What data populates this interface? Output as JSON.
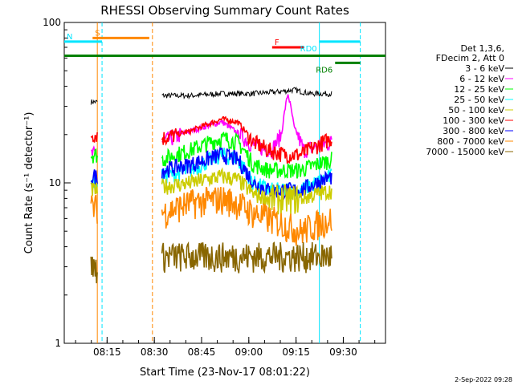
{
  "chart_data": {
    "type": "line",
    "title": "RHESSI Observing Summary Count Rates",
    "xlabel": "Start Time (23-Nov-17 08:01:22)",
    "ylabel": "Count Rate (s⁻¹ detector⁻¹)",
    "yscale": "log",
    "ylim": [
      1,
      100
    ],
    "xlim_minutes": [
      0,
      102
    ],
    "x_ticks": [
      {
        "label": "08:15",
        "minute": 13.6
      },
      {
        "label": "08:30",
        "minute": 28.6
      },
      {
        "label": "08:45",
        "minute": 43.6
      },
      {
        "label": "09:00",
        "minute": 58.6
      },
      {
        "label": "09:15",
        "minute": 73.6
      },
      {
        "label": "09:30",
        "minute": 88.6
      }
    ],
    "y_ticks": [
      {
        "label": "1",
        "value": 1
      },
      {
        "label": "10",
        "value": 10
      },
      {
        "label": "100",
        "value": 100
      }
    ],
    "legend": {
      "header": [
        "Det 1,3,6,",
        "FDecim 2, Att 0"
      ],
      "entries": [
        {
          "label": "3 - 6 keV",
          "color": "#000000"
        },
        {
          "label": "6 - 12 keV",
          "color": "#ff00ff"
        },
        {
          "label": "12 - 25 keV",
          "color": "#00ff00"
        },
        {
          "label": "25 - 50 keV",
          "color": "#00ffff"
        },
        {
          "label": "50 - 100 keV",
          "color": "#cccc00"
        },
        {
          "label": "100 - 300 keV",
          "color": "#ff0000"
        },
        {
          "label": "300 - 800 keV",
          "color": "#0000ff"
        },
        {
          "label": "800 - 7000 keV",
          "color": "#ff8800"
        },
        {
          "label": "7000 - 15000 keV",
          "color": "#886600"
        }
      ]
    },
    "flags": [
      {
        "label": "S",
        "color": "#ff8800",
        "value": 80,
        "x_start": 9.0,
        "x_end": 27.0
      },
      {
        "label": "N",
        "color": "#00e5ff",
        "value": 76,
        "x_start": 0,
        "x_end": 12.0
      },
      {
        "label": "F",
        "color": "#ff0000",
        "value": 70,
        "x_start": 66.0,
        "x_end": 76.0
      },
      {
        "label": "RD0",
        "color": "#00e5ff",
        "value": 76,
        "x_start": 81.0,
        "x_end": 94.0
      },
      {
        "label": "RD6",
        "color": "#008000",
        "value": 56,
        "x_start": 86.0,
        "x_end": 94.0
      },
      {
        "label": "",
        "color": "#008000",
        "value": 62,
        "x_start": 0,
        "x_end": 102.0
      }
    ],
    "vlines": [
      {
        "minute": 10.5,
        "color": "#ff8800",
        "style": "solid"
      },
      {
        "minute": 12.0,
        "color": "#00e5ff",
        "style": "dashed"
      },
      {
        "minute": 28.0,
        "color": "#ff8800",
        "style": "dashed"
      },
      {
        "minute": 81.0,
        "color": "#00e5ff",
        "style": "solid"
      },
      {
        "minute": 94.0,
        "color": "#00e5ff",
        "style": "dashed"
      }
    ],
    "segments": [
      {
        "x_start": 8.5,
        "x_end": 10.5
      },
      {
        "x_start": 31.0,
        "x_end": 85.0
      }
    ],
    "series": [
      {
        "name": "3 - 6 keV",
        "color": "#000000",
        "x": [
          8.5,
          10.5,
          31,
          40,
          50,
          60,
          68,
          73,
          78,
          85
        ],
        "values": [
          32,
          32,
          35,
          35,
          36,
          36,
          37,
          38,
          36,
          36
        ]
      },
      {
        "name": "6 - 12 keV",
        "color": "#ff00ff",
        "x": [
          8.5,
          10.5,
          31,
          40,
          50,
          60,
          66,
          69,
          71,
          73,
          76,
          85
        ],
        "values": [
          15,
          15,
          18,
          21,
          24,
          17,
          16,
          20,
          36,
          22,
          16,
          18
        ]
      },
      {
        "name": "100 - 300 keV",
        "color": "#ff0000",
        "x": [
          8.5,
          10.5,
          31,
          40,
          50,
          55,
          60,
          65,
          70,
          75,
          80,
          85
        ],
        "values": [
          20,
          20,
          19,
          21,
          25,
          24,
          18,
          16,
          15,
          15,
          17,
          19
        ]
      },
      {
        "name": "12 - 25 keV",
        "color": "#00ff00",
        "x": [
          8.5,
          10.5,
          31,
          40,
          50,
          55,
          60,
          65,
          70,
          75,
          80,
          85
        ],
        "values": [
          15,
          15,
          14,
          16,
          19,
          18,
          13,
          12,
          12,
          12,
          13,
          14
        ]
      },
      {
        "name": "25 - 50 keV",
        "color": "#00ffff",
        "x": [
          8.5,
          10.5,
          31,
          40,
          50,
          55,
          60,
          65,
          70,
          75,
          80,
          85
        ],
        "values": [
          10,
          10,
          11,
          12,
          15,
          14,
          10,
          9,
          9,
          9,
          10,
          11
        ]
      },
      {
        "name": "300 - 800 keV",
        "color": "#0000ff",
        "x": [
          8.5,
          10.5,
          31,
          40,
          50,
          55,
          60,
          65,
          70,
          75,
          80,
          85
        ],
        "values": [
          11,
          11,
          12,
          13,
          15,
          14,
          10,
          9,
          9,
          9,
          10,
          11
        ]
      },
      {
        "name": "50 - 100 keV",
        "color": "#cccc00",
        "x": [
          8.5,
          10.5,
          31,
          40,
          50,
          55,
          60,
          65,
          70,
          75,
          80,
          85
        ],
        "values": [
          9,
          9,
          9.5,
          10,
          11,
          10.5,
          8.5,
          8,
          8,
          8,
          8.5,
          9
        ]
      },
      {
        "name": "800 - 7000 keV",
        "color": "#ff8800",
        "x": [
          8.5,
          10.5,
          31,
          40,
          50,
          55,
          60,
          65,
          70,
          75,
          80,
          85
        ],
        "values": [
          7,
          7,
          6.5,
          7.5,
          8,
          7.5,
          6.5,
          6,
          5.5,
          5,
          5.5,
          6
        ]
      },
      {
        "name": "7000 - 15000 keV",
        "color": "#886600",
        "x": [
          8.5,
          10.5,
          31,
          85
        ],
        "values": [
          3,
          3,
          3.5,
          3.5
        ]
      }
    ]
  },
  "footer": {
    "timestamp": "2-Sep-2022 09:28"
  }
}
